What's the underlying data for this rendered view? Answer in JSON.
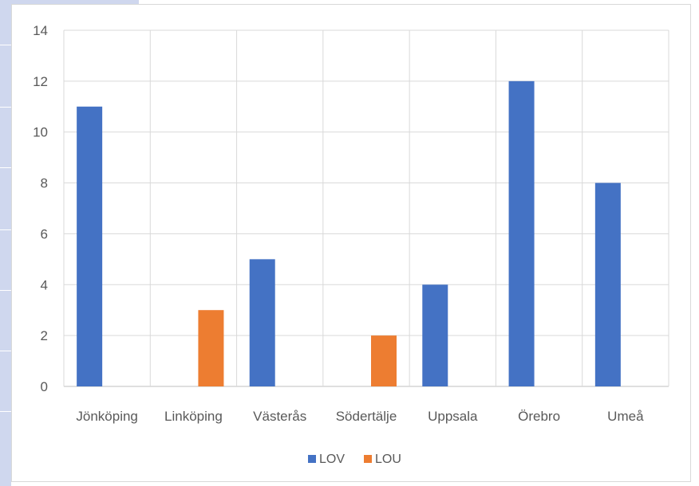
{
  "chart_data": {
    "type": "bar",
    "categories": [
      "Jönköping",
      "Linköping",
      "Västerås",
      "Södertälje",
      "Uppsala",
      "Örebro",
      "Umeå"
    ],
    "series": [
      {
        "name": "LOV",
        "color": "#4472c4",
        "values": [
          11,
          null,
          5,
          null,
          4,
          12,
          8
        ]
      },
      {
        "name": "LOU",
        "color": "#ed7d31",
        "values": [
          null,
          3,
          null,
          2,
          null,
          null,
          null
        ]
      }
    ],
    "yticks": [
      0,
      2,
      4,
      6,
      8,
      10,
      12,
      14
    ],
    "ylim": [
      0,
      14
    ],
    "grid": true,
    "legend": "bottom-center"
  }
}
